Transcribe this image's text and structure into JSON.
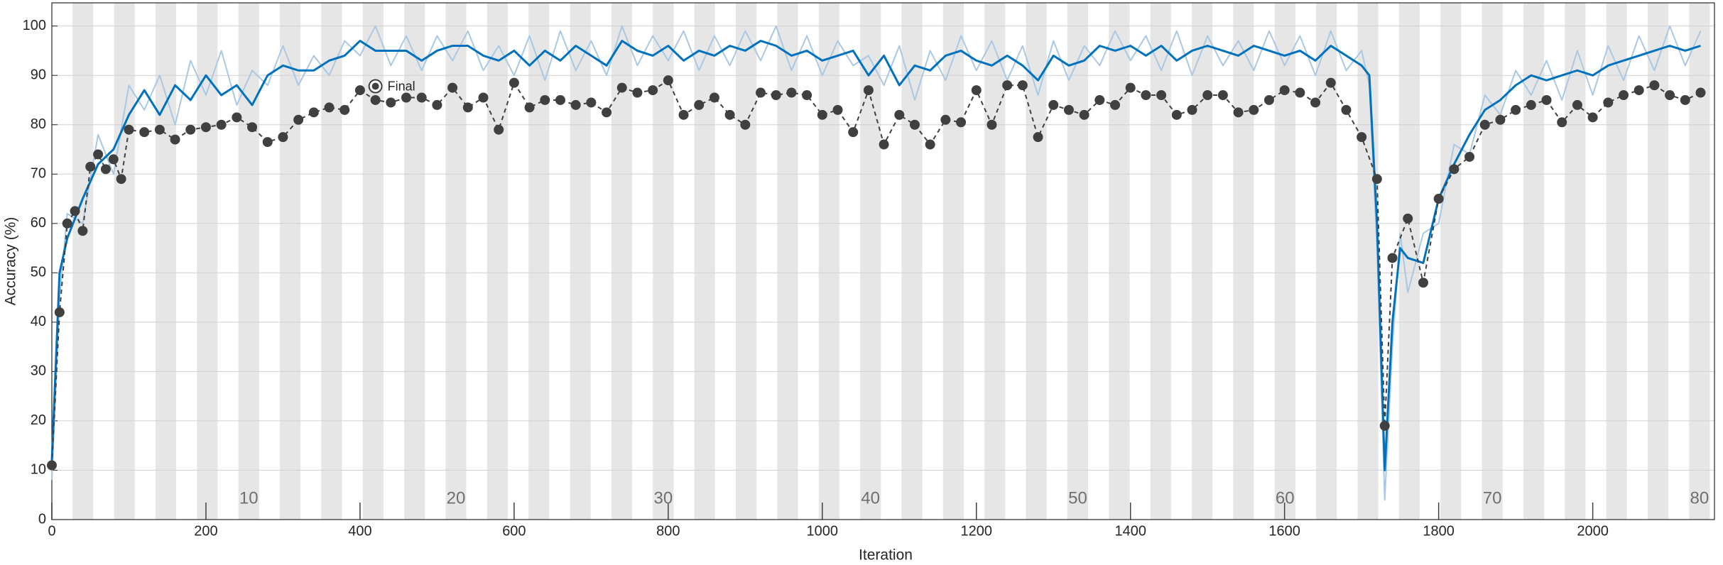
{
  "chart_data": {
    "type": "line",
    "x_label": "Iteration",
    "y_label": "Accuracy (%)",
    "xlim": [
      0,
      2158
    ],
    "ylim": [
      0,
      104.7
    ],
    "xticks": [
      0,
      200,
      400,
      600,
      800,
      1000,
      1200,
      1400,
      1600,
      1800,
      2000
    ],
    "yticks": [
      0,
      10,
      20,
      30,
      40,
      50,
      60,
      70,
      80,
      90,
      100
    ],
    "grid": true,
    "epoch_length": 26.9,
    "band_color": "#e6e6e6",
    "epoch_labels": [
      10,
      20,
      30,
      40,
      50,
      60,
      70,
      80
    ],
    "annotation": {
      "text": "Final",
      "x": 420,
      "y": 87.8
    },
    "series": [
      {
        "color": "#a9c8e3",
        "width": 2,
        "x": [
          0,
          10,
          20,
          40,
          60,
          80,
          100,
          120,
          140,
          160,
          180,
          200,
          220,
          240,
          260,
          280,
          300,
          320,
          340,
          360,
          380,
          400,
          420,
          440,
          460,
          480,
          500,
          520,
          540,
          560,
          580,
          600,
          620,
          640,
          660,
          680,
          700,
          720,
          740,
          760,
          780,
          800,
          820,
          840,
          860,
          880,
          900,
          920,
          940,
          960,
          980,
          1000,
          1020,
          1040,
          1060,
          1080,
          1100,
          1120,
          1140,
          1160,
          1180,
          1200,
          1220,
          1240,
          1260,
          1280,
          1300,
          1320,
          1340,
          1360,
          1380,
          1400,
          1420,
          1440,
          1460,
          1480,
          1500,
          1520,
          1540,
          1560,
          1580,
          1600,
          1620,
          1640,
          1660,
          1680,
          1700,
          1710,
          1720,
          1730,
          1740,
          1750,
          1760,
          1780,
          1800,
          1820,
          1840,
          1860,
          1880,
          1900,
          1920,
          1940,
          1960,
          1980,
          2000,
          2020,
          2040,
          2060,
          2080,
          2100,
          2120,
          2140
        ],
        "values": [
          8,
          45,
          62,
          60,
          78,
          70,
          88,
          83,
          90,
          80,
          93,
          86,
          95,
          84,
          91,
          88,
          96,
          88,
          94,
          90,
          97,
          94,
          100,
          92,
          98,
          91,
          98,
          93,
          99,
          91,
          96,
          90,
          98,
          89,
          99,
          91,
          97,
          90,
          100,
          92,
          98,
          93,
          99,
          91,
          98,
          92,
          99,
          93,
          100,
          91,
          98,
          90,
          97,
          92,
          94,
          88,
          96,
          85,
          95,
          89,
          98,
          91,
          97,
          89,
          96,
          86,
          97,
          89,
          96,
          92,
          99,
          93,
          98,
          91,
          99,
          90,
          98,
          92,
          97,
          91,
          99,
          92,
          98,
          90,
          99,
          91,
          95,
          88,
          55,
          4,
          35,
          58,
          46,
          58,
          60,
          76,
          74,
          86,
          82,
          91,
          86,
          93,
          85,
          95,
          86,
          96,
          89,
          98,
          91,
          100,
          92,
          99
        ]
      },
      {
        "color": "#0072bd",
        "width": 3,
        "x": [
          0,
          10,
          20,
          40,
          60,
          80,
          100,
          120,
          140,
          160,
          180,
          200,
          220,
          240,
          260,
          280,
          300,
          320,
          340,
          360,
          380,
          400,
          420,
          440,
          460,
          480,
          500,
          520,
          540,
          560,
          580,
          600,
          620,
          640,
          660,
          680,
          700,
          720,
          740,
          760,
          780,
          800,
          820,
          840,
          860,
          880,
          900,
          920,
          940,
          960,
          980,
          1000,
          1020,
          1040,
          1060,
          1080,
          1100,
          1120,
          1140,
          1160,
          1180,
          1200,
          1220,
          1240,
          1260,
          1280,
          1300,
          1320,
          1340,
          1360,
          1380,
          1400,
          1420,
          1440,
          1460,
          1480,
          1500,
          1520,
          1540,
          1560,
          1580,
          1600,
          1620,
          1640,
          1660,
          1680,
          1700,
          1710,
          1720,
          1730,
          1740,
          1750,
          1760,
          1780,
          1800,
          1820,
          1840,
          1860,
          1880,
          1900,
          1920,
          1940,
          1960,
          1980,
          2000,
          2020,
          2040,
          2060,
          2080,
          2100,
          2120,
          2140
        ],
        "values": [
          12,
          50,
          57,
          65,
          72,
          75,
          82,
          87,
          82,
          88,
          85,
          90,
          86,
          88,
          84,
          90,
          92,
          91,
          91,
          93,
          94,
          97,
          95,
          95,
          95,
          93,
          95,
          96,
          96,
          94,
          93,
          95,
          92,
          95,
          93,
          96,
          94,
          92,
          97,
          95,
          94,
          96,
          93,
          95,
          94,
          96,
          95,
          97,
          96,
          94,
          95,
          93,
          94,
          95,
          90,
          94,
          88,
          92,
          91,
          94,
          95,
          93,
          92,
          94,
          92,
          89,
          94,
          92,
          93,
          96,
          95,
          96,
          94,
          96,
          93,
          95,
          96,
          95,
          94,
          96,
          95,
          94,
          95,
          93,
          96,
          94,
          92,
          90,
          60,
          10,
          40,
          55,
          53,
          52,
          65,
          72,
          78,
          83,
          85,
          88,
          90,
          89,
          90,
          91,
          90,
          92,
          93,
          94,
          95,
          96,
          95,
          96
        ]
      },
      {
        "color": "#404040",
        "width": 2,
        "dashed": true,
        "markers": true,
        "x": [
          0,
          10,
          20,
          30,
          40,
          50,
          60,
          70,
          80,
          90,
          100,
          120,
          140,
          160,
          180,
          200,
          220,
          240,
          260,
          280,
          300,
          320,
          340,
          360,
          380,
          400,
          420,
          440,
          460,
          480,
          500,
          520,
          540,
          560,
          580,
          600,
          620,
          640,
          660,
          680,
          700,
          720,
          740,
          760,
          780,
          800,
          820,
          840,
          860,
          880,
          900,
          920,
          940,
          960,
          980,
          1000,
          1020,
          1040,
          1060,
          1080,
          1100,
          1120,
          1140,
          1160,
          1180,
          1200,
          1220,
          1240,
          1260,
          1280,
          1300,
          1320,
          1340,
          1360,
          1380,
          1400,
          1420,
          1440,
          1460,
          1480,
          1500,
          1520,
          1540,
          1560,
          1580,
          1600,
          1620,
          1640,
          1660,
          1680,
          1700,
          1720,
          1730,
          1740,
          1760,
          1780,
          1800,
          1820,
          1840,
          1860,
          1880,
          1900,
          1920,
          1940,
          1960,
          1980,
          2000,
          2020,
          2040,
          2060,
          2080,
          2100,
          2120,
          2140
        ],
        "values": [
          11,
          42,
          60,
          62.5,
          58.5,
          71.5,
          74,
          71,
          73,
          69,
          79,
          78.5,
          79,
          77,
          79,
          79.5,
          80,
          81.5,
          79.5,
          76.5,
          77.5,
          81,
          82.5,
          83.5,
          83,
          87,
          85,
          84.5,
          85.5,
          85.5,
          84,
          87.5,
          83.5,
          85.5,
          79,
          88.5,
          83.5,
          85,
          85,
          84,
          84.5,
          82.5,
          87.5,
          86.5,
          87,
          89,
          82,
          84,
          85.5,
          82,
          80,
          86.5,
          86,
          86.5,
          86,
          82,
          83,
          78.5,
          87,
          76,
          82,
          80,
          76,
          81,
          80.5,
          87,
          80,
          88,
          88,
          77.5,
          84,
          83,
          82,
          85,
          84,
          87.5,
          86,
          86,
          82,
          83,
          86,
          86,
          82.5,
          83,
          85,
          87,
          86.5,
          84.5,
          88.5,
          83,
          77.5,
          69,
          19,
          53,
          61,
          48,
          65,
          71,
          73.5,
          80,
          81,
          83,
          84,
          85,
          80.5,
          84,
          81.5,
          84.5,
          86,
          87,
          88,
          86,
          85,
          86.5
        ]
      }
    ]
  }
}
